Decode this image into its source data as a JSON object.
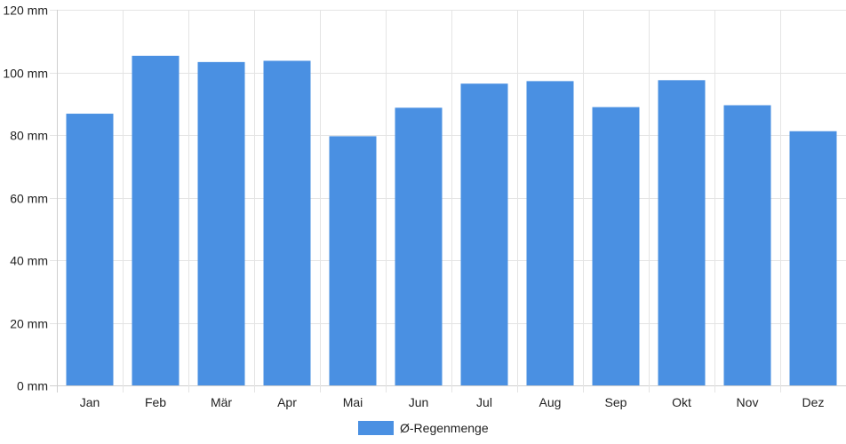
{
  "chart_data": {
    "type": "bar",
    "categories": [
      "Jan",
      "Feb",
      "Mär",
      "Apr",
      "Mai",
      "Jun",
      "Jul",
      "Aug",
      "Sep",
      "Okt",
      "Nov",
      "Dez"
    ],
    "series": [
      {
        "name": "Ø-Regenmenge",
        "color": "#4a90e2",
        "values": [
          86.8,
          105.3,
          103.3,
          103.7,
          79.6,
          88.7,
          96.4,
          97.2,
          88.9,
          97.5,
          89.5,
          81.2
        ]
      }
    ],
    "y_ticks": [
      "0 mm",
      "20 mm",
      "40 mm",
      "60 mm",
      "80 mm",
      "100 mm",
      "120 mm"
    ],
    "ylim": [
      0,
      120
    ],
    "y_unit": "mm",
    "grid": true,
    "legend": {
      "position": "bottom",
      "label": "Ø-Regenmenge"
    },
    "title": "",
    "xlabel": "",
    "ylabel": ""
  },
  "colors": {
    "bar": "#4a90e2",
    "grid": "#e4e4e4",
    "axis": "#cfcfcf"
  }
}
